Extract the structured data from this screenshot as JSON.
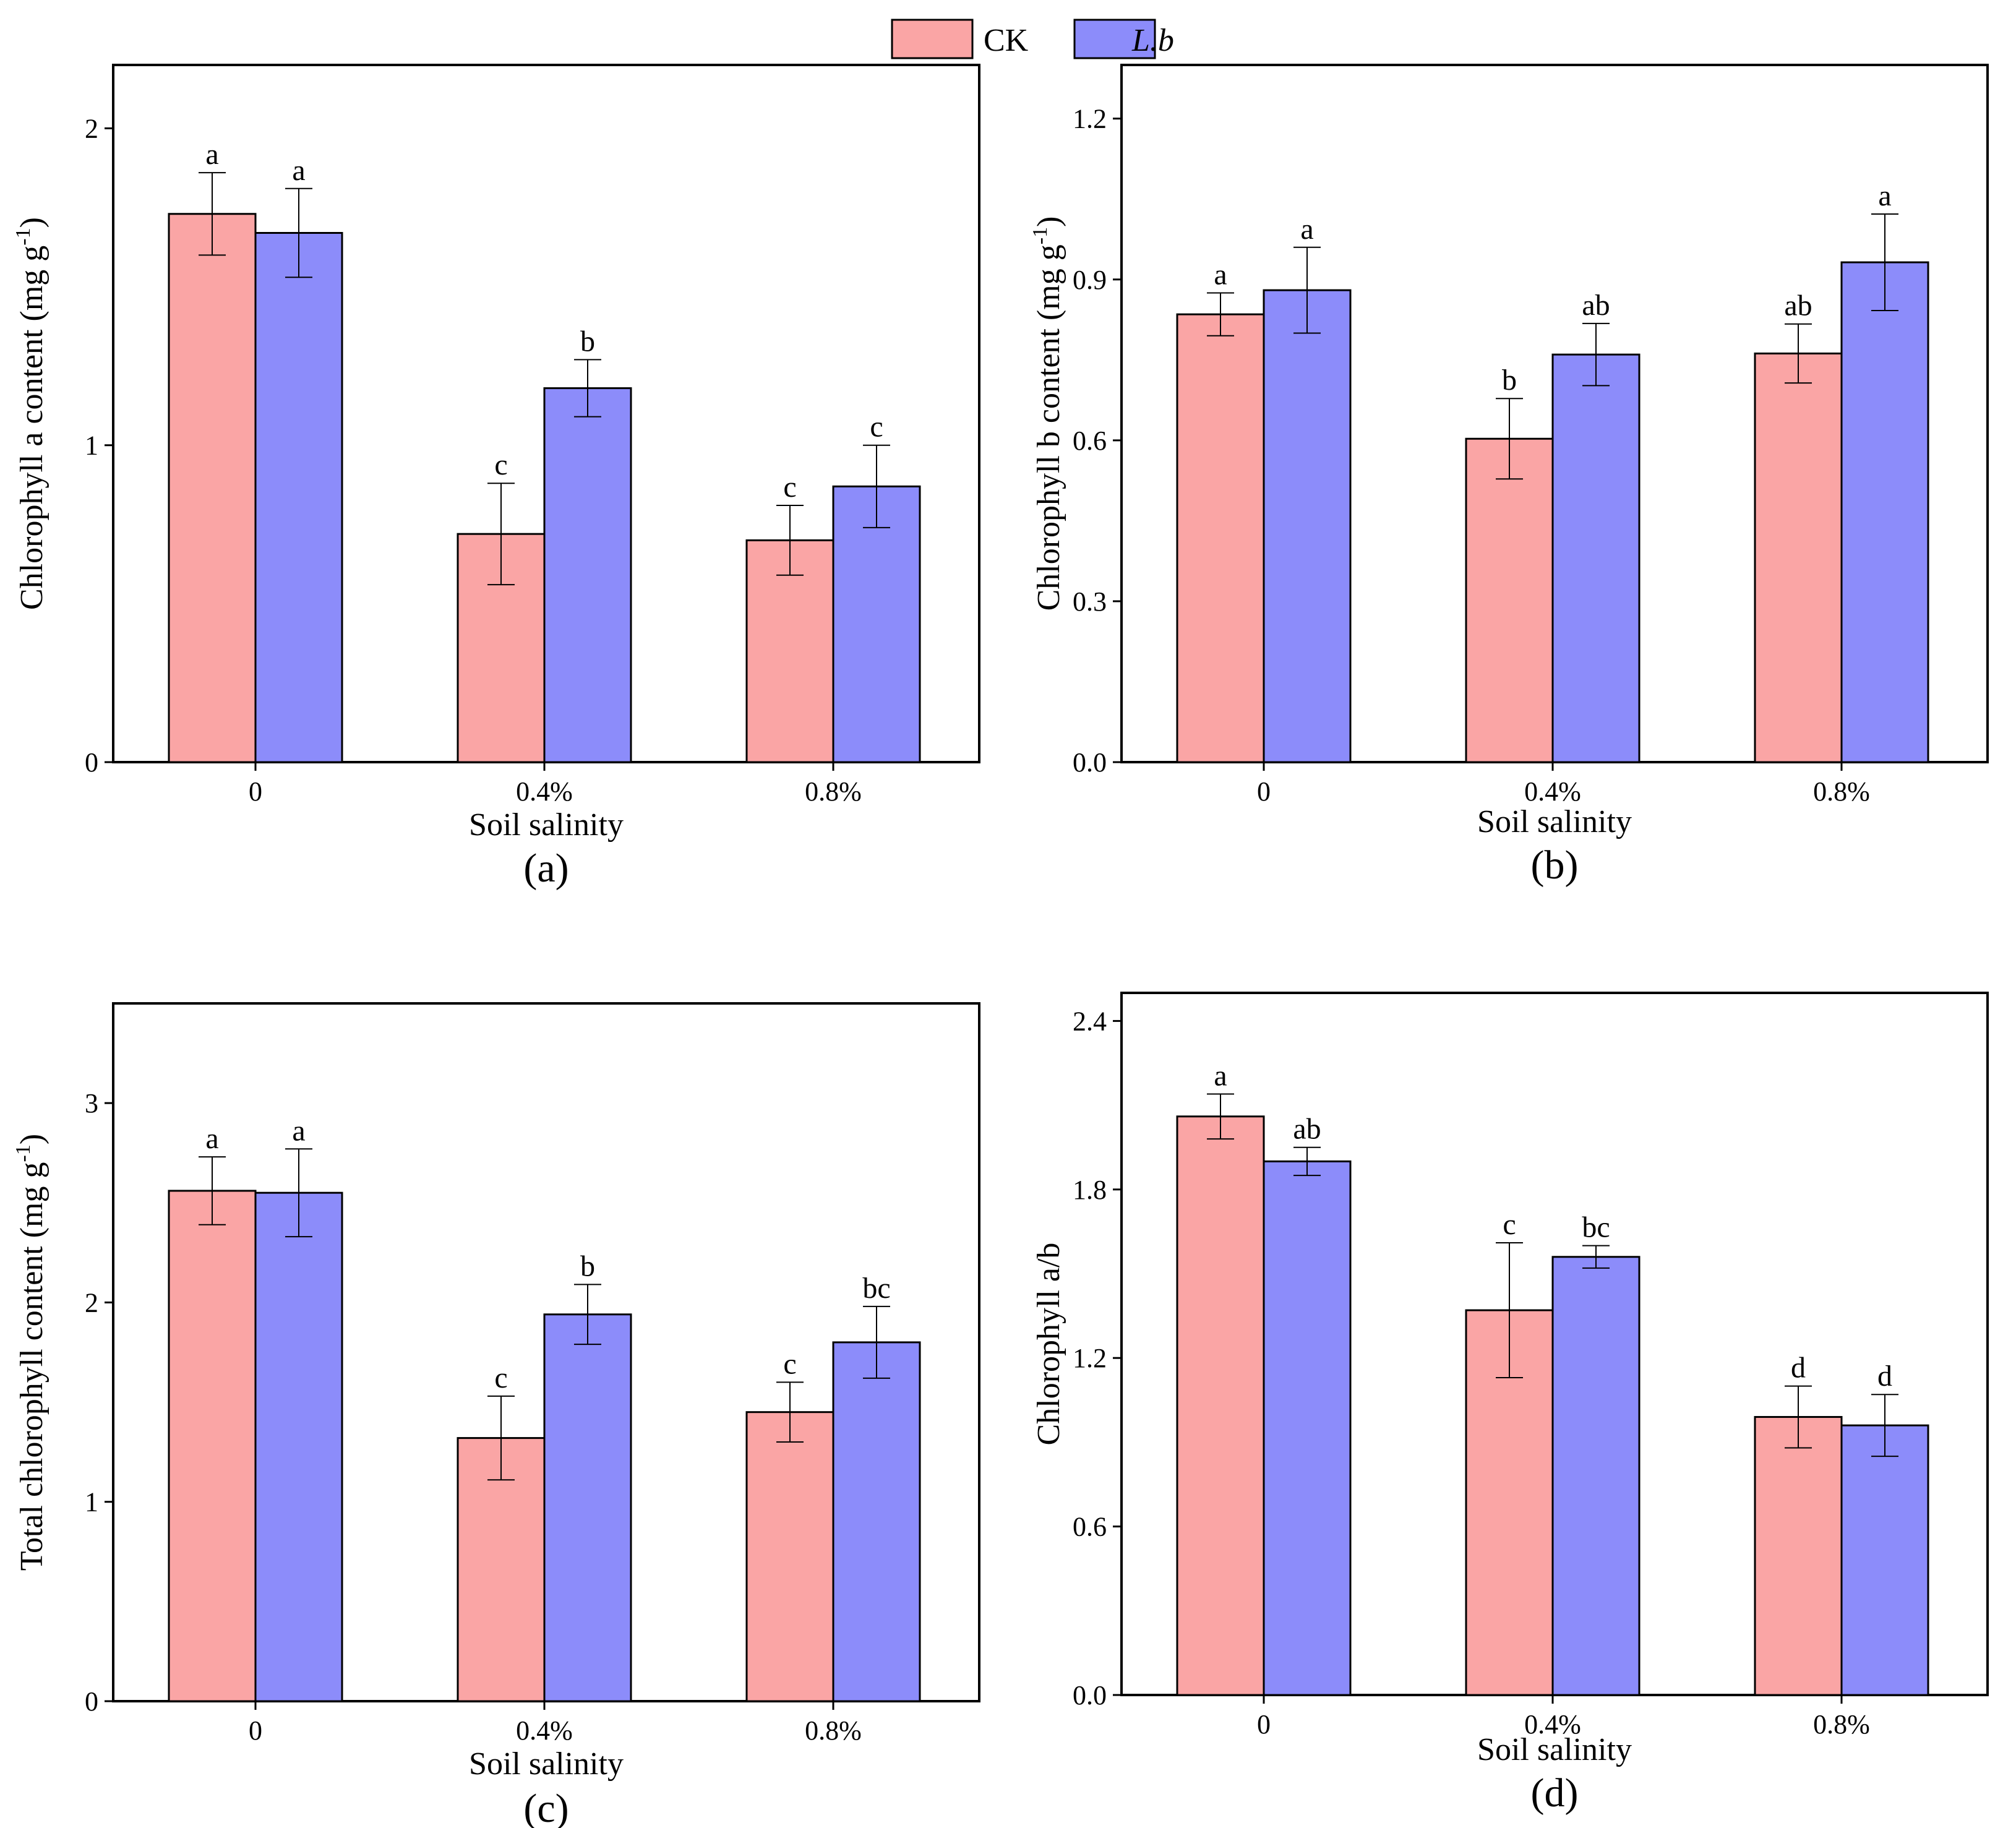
{
  "legend": {
    "items": [
      {
        "label": "CK",
        "color": "#FAA5A5",
        "italic": false
      },
      {
        "label": "L.b",
        "color": "#8C8CFA",
        "italic": true
      }
    ]
  },
  "chart_data": [
    {
      "panel": "(a)",
      "type": "bar",
      "xlabel": "Soil salinity",
      "ylabel": "Chlorophyll a content (mg g",
      "ylabel_sup": "-1",
      "ylabel_end": ")",
      "categories": [
        "0",
        "0.4%",
        "0.8%"
      ],
      "ylim": [
        0,
        2.2
      ],
      "yticks": [
        0,
        1,
        2
      ],
      "ytick_labels": [
        "0",
        "1",
        "2"
      ],
      "series": [
        {
          "name": "CK",
          "values": [
            1.73,
            0.72,
            0.7
          ],
          "errors": [
            0.13,
            0.16,
            0.11
          ],
          "letters": [
            "a",
            "c",
            "c"
          ]
        },
        {
          "name": "L.b",
          "values": [
            1.67,
            1.18,
            0.87
          ],
          "errors": [
            0.14,
            0.09,
            0.13
          ],
          "letters": [
            "a",
            "b",
            "c"
          ]
        }
      ]
    },
    {
      "panel": "(b)",
      "type": "bar",
      "xlabel": "Soil salinity",
      "ylabel": "Chlorophyll b content (mg g",
      "ylabel_sup": "-1",
      "ylabel_end": ")",
      "categories": [
        "0",
        "0.4%",
        "0.8%"
      ],
      "ylim": [
        0,
        1.3
      ],
      "yticks": [
        0.0,
        0.3,
        0.6,
        0.9,
        1.2
      ],
      "ytick_labels": [
        "0.0",
        "0.3",
        "0.6",
        "0.9",
        "1.2"
      ],
      "series": [
        {
          "name": "CK",
          "values": [
            0.835,
            0.603,
            0.762
          ],
          "errors": [
            0.04,
            0.075,
            0.055
          ],
          "letters": [
            "a",
            "b",
            "ab"
          ]
        },
        {
          "name": "L.b",
          "values": [
            0.88,
            0.76,
            0.932
          ],
          "errors": [
            0.08,
            0.058,
            0.09
          ],
          "letters": [
            "a",
            "ab",
            "a"
          ]
        }
      ]
    },
    {
      "panel": "(c)",
      "type": "bar",
      "xlabel": "Soil salinity",
      "ylabel": "Total chlorophyll content (mg g",
      "ylabel_sup": "-1",
      "ylabel_end": ")",
      "categories": [
        "0",
        "0.4%",
        "0.8%"
      ],
      "ylim": [
        0,
        3.5
      ],
      "yticks": [
        0,
        1,
        2,
        3
      ],
      "ytick_labels": [
        "0",
        "1",
        "2",
        "3"
      ],
      "series": [
        {
          "name": "CK",
          "values": [
            2.56,
            1.32,
            1.45
          ],
          "errors": [
            0.17,
            0.21,
            0.15
          ],
          "letters": [
            "a",
            "c",
            "c"
          ]
        },
        {
          "name": "L.b",
          "values": [
            2.55,
            1.94,
            1.8
          ],
          "errors": [
            0.22,
            0.15,
            0.18
          ],
          "letters": [
            "a",
            "b",
            "bc"
          ]
        }
      ]
    },
    {
      "panel": "(d)",
      "type": "bar",
      "xlabel": "Soil salinity",
      "ylabel": "Chlorophyll a/b",
      "ylabel_sup": "",
      "ylabel_end": "",
      "categories": [
        "0",
        "0.4%",
        "0.8%"
      ],
      "ylim": [
        0,
        2.5
      ],
      "yticks": [
        0.0,
        0.6,
        1.2,
        1.8,
        2.4
      ],
      "ytick_labels": [
        "0.0",
        "0.6",
        "1.2",
        "1.8",
        "2.4"
      ],
      "series": [
        {
          "name": "CK",
          "values": [
            2.06,
            1.37,
            0.99
          ],
          "errors": [
            0.08,
            0.24,
            0.11
          ],
          "letters": [
            "a",
            "c",
            "d"
          ]
        },
        {
          "name": "L.b",
          "values": [
            1.9,
            1.56,
            0.96
          ],
          "errors": [
            0.05,
            0.04,
            0.11
          ],
          "letters": [
            "ab",
            "bc",
            "d"
          ]
        }
      ]
    }
  ]
}
